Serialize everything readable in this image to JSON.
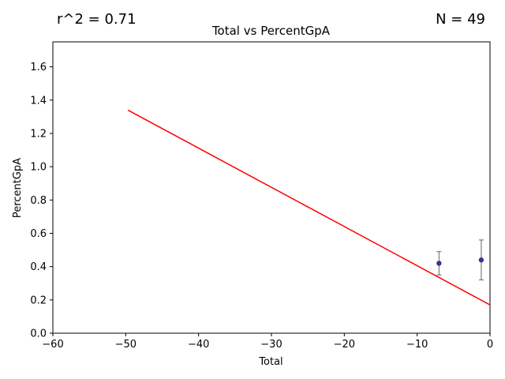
{
  "chart_data": {
    "type": "scatter",
    "title": "Total vs PercentGpA",
    "xlabel": "Total",
    "ylabel": "PercentGpA",
    "xlim": [
      -60,
      0
    ],
    "ylim": [
      0,
      1.75
    ],
    "x_ticks": [
      -60,
      -50,
      -40,
      -30,
      -20,
      -10,
      0
    ],
    "y_ticks": [
      0.0,
      0.2,
      0.4,
      0.6,
      0.8,
      1.0,
      1.2,
      1.4,
      1.6
    ],
    "x_tick_labels": [
      "−60",
      "−50",
      "−40",
      "−30",
      "−20",
      "−10",
      "0"
    ],
    "y_tick_labels": [
      "0.0",
      "0.2",
      "0.4",
      "0.6",
      "0.8",
      "1.0",
      "1.2",
      "1.4",
      "1.6"
    ],
    "points": [
      {
        "x": -7,
        "y": 0.42,
        "err_low": 0.35,
        "err_high": 0.49
      },
      {
        "x": -1.2,
        "y": 0.44,
        "err_low": 0.32,
        "err_high": 0.56
      }
    ],
    "fit_line": {
      "x": [
        -49.7,
        0
      ],
      "y": [
        1.34,
        0.17
      ]
    },
    "r2_text": "r^2 = 0.71",
    "n_text": "N = 49",
    "colors": {
      "points": "#3b3486",
      "fit": "#ff0000",
      "errorbar": "#666666"
    },
    "grid": false
  }
}
